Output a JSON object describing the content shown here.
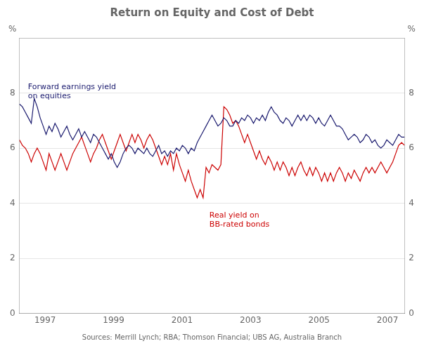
{
  "chart_data": {
    "type": "line",
    "title": "Return on Equity and Cost of Debt",
    "ylabel": "%",
    "y2label": "%",
    "source": "Sources: Merrill Lynch; RBA; Thomson Financial; UBS AG, Australia Branch",
    "xlim": [
      1996.25,
      2007.5
    ],
    "xticks": [
      1997,
      1999,
      2001,
      2003,
      2005,
      2007
    ],
    "ylim": [
      0,
      10
    ],
    "yticks": [
      0,
      2,
      4,
      6,
      8
    ],
    "y2lim": [
      0,
      10
    ],
    "y2ticks": [
      0,
      2,
      4,
      6,
      8
    ],
    "grid": "y",
    "x": [
      1996.25,
      1996.33654,
      1996.42308,
      1996.50962,
      1996.59615,
      1996.68269,
      1996.76923,
      1996.85577,
      1996.94231,
      1997.02885,
      1997.11538,
      1997.20192,
      1997.28846,
      1997.375,
      1997.46154,
      1997.54808,
      1997.63462,
      1997.72115,
      1997.80769,
      1997.89423,
      1997.98077,
      1998.06731,
      1998.15385,
      1998.24038,
      1998.32692,
      1998.41346,
      1998.5,
      1998.58654,
      1998.67308,
      1998.75962,
      1998.84615,
      1998.93269,
      1999.01923,
      1999.10577,
      1999.19231,
      1999.27885,
      1999.36538,
      1999.45192,
      1999.53846,
      1999.625,
      1999.71154,
      1999.79808,
      1999.88462,
      1999.97115,
      2000.05769,
      2000.14423,
      2000.23077,
      2000.31731,
      2000.40385,
      2000.49038,
      2000.57692,
      2000.66346,
      2000.75,
      2000.83654,
      2000.92308,
      2001.00962,
      2001.09615,
      2001.18269,
      2001.26923,
      2001.35577,
      2001.44231,
      2001.52885,
      2001.61538,
      2001.70192,
      2001.78846,
      2001.875,
      2001.96154,
      2002.04808,
      2002.13462,
      2002.22115,
      2002.30769,
      2002.39423,
      2002.48077,
      2002.56731,
      2002.65385,
      2002.74038,
      2002.82692,
      2002.91346,
      2003,
      2003.08654,
      2003.17308,
      2003.25962,
      2003.34615,
      2003.43269,
      2003.51923,
      2003.60577,
      2003.69231,
      2003.77885,
      2003.86538,
      2003.95192,
      2004.03846,
      2004.125,
      2004.21154,
      2004.29808,
      2004.38462,
      2004.47115,
      2004.55769,
      2004.64423,
      2004.73077,
      2004.81731,
      2004.90385,
      2004.99038,
      2005.07692,
      2005.16346,
      2005.25,
      2005.33654,
      2005.42308,
      2005.50962,
      2005.59615,
      2005.68269,
      2005.76923,
      2005.85577,
      2005.94231,
      2006.02885,
      2006.11538,
      2006.20192,
      2006.28846,
      2006.375,
      2006.46154,
      2006.54808,
      2006.63462,
      2006.72115,
      2006.80769,
      2006.89423,
      2006.98077,
      2007.06731,
      2007.15385,
      2007.24038,
      2007.32692,
      2007.41346,
      2007.5
    ],
    "series": [
      {
        "color": "#1a1a6e",
        "values": [
          7.6,
          7.5,
          7.3,
          7.1,
          6.9,
          7.8,
          7.5,
          7.1,
          6.8,
          6.5,
          6.8,
          6.6,
          6.9,
          6.7,
          6.4,
          6.6,
          6.8,
          6.5,
          6.3,
          6.5,
          6.7,
          6.4,
          6.6,
          6.4,
          6.2,
          6.5,
          6.4,
          6.2,
          6.0,
          5.8,
          5.6,
          5.8,
          5.5,
          5.3,
          5.5,
          5.8,
          6.0,
          6.1,
          6.0,
          5.8,
          6.0,
          5.9,
          5.8,
          6.0,
          5.8,
          5.7,
          5.9,
          6.1,
          5.8,
          5.9,
          5.7,
          5.9,
          5.8,
          6.0,
          5.9,
          6.1,
          6.0,
          5.8,
          6.0,
          5.9,
          6.2,
          6.4,
          6.6,
          6.8,
          7.0,
          7.2,
          7.0,
          6.8,
          6.9,
          7.1,
          7.0,
          6.8,
          6.8,
          7.0,
          6.9,
          7.1,
          7.0,
          7.2,
          7.1,
          6.9,
          7.1,
          7.0,
          7.2,
          7.0,
          7.3,
          7.5,
          7.3,
          7.2,
          7.0,
          6.9,
          7.1,
          7.0,
          6.8,
          7.0,
          7.2,
          7.0,
          7.2,
          7.0,
          7.2,
          7.1,
          6.9,
          7.1,
          6.9,
          6.8,
          7.0,
          7.2,
          7.0,
          6.8,
          6.8,
          6.7,
          6.5,
          6.3,
          6.4,
          6.5,
          6.4,
          6.2,
          6.3,
          6.5,
          6.4,
          6.2,
          6.3,
          6.1,
          6.0,
          6.1,
          6.3,
          6.2,
          6.1,
          6.3,
          6.5,
          6.4,
          6.4
        ]
      },
      {
        "color": "#cc0000",
        "values": [
          6.3,
          6.1,
          6.0,
          5.8,
          5.5,
          5.8,
          6.0,
          5.8,
          5.5,
          5.2,
          5.8,
          5.5,
          5.2,
          5.5,
          5.8,
          5.5,
          5.2,
          5.5,
          5.8,
          6.0,
          6.2,
          6.4,
          6.1,
          5.8,
          5.5,
          5.8,
          6.0,
          6.3,
          6.5,
          6.2,
          5.9,
          5.6,
          5.9,
          6.2,
          6.5,
          6.2,
          5.9,
          6.2,
          6.5,
          6.2,
          6.5,
          6.3,
          6.0,
          6.3,
          6.5,
          6.3,
          6.0,
          5.7,
          5.4,
          5.7,
          5.4,
          5.8,
          5.2,
          5.8,
          5.4,
          5.1,
          4.8,
          5.2,
          4.8,
          4.5,
          4.2,
          4.5,
          4.2,
          5.3,
          5.1,
          5.4,
          5.3,
          5.2,
          5.4,
          7.5,
          7.4,
          7.2,
          6.9,
          7.0,
          6.8,
          6.5,
          6.2,
          6.5,
          6.2,
          5.9,
          5.6,
          5.9,
          5.6,
          5.4,
          5.7,
          5.5,
          5.2,
          5.5,
          5.2,
          5.5,
          5.3,
          5.0,
          5.3,
          5.0,
          5.3,
          5.5,
          5.2,
          5.0,
          5.3,
          5.0,
          5.3,
          5.1,
          4.8,
          5.1,
          4.8,
          5.1,
          4.8,
          5.1,
          5.3,
          5.1,
          4.8,
          5.1,
          4.9,
          5.2,
          5.0,
          4.8,
          5.1,
          5.3,
          5.1,
          5.3,
          5.1,
          5.3,
          5.5,
          5.3,
          5.1,
          5.3,
          5.5,
          5.8,
          6.1,
          6.2,
          6.1
        ]
      }
    ],
    "annotations": [
      {
        "text": "Forward earnings yield\non equities",
        "color": "#1a1a6e",
        "x": 1996.5,
        "y": 8.35
      },
      {
        "text": "Real yield on\nBB-rated bonds",
        "color": "#cc0000",
        "x": 2001.8,
        "y": 3.7
      }
    ]
  }
}
